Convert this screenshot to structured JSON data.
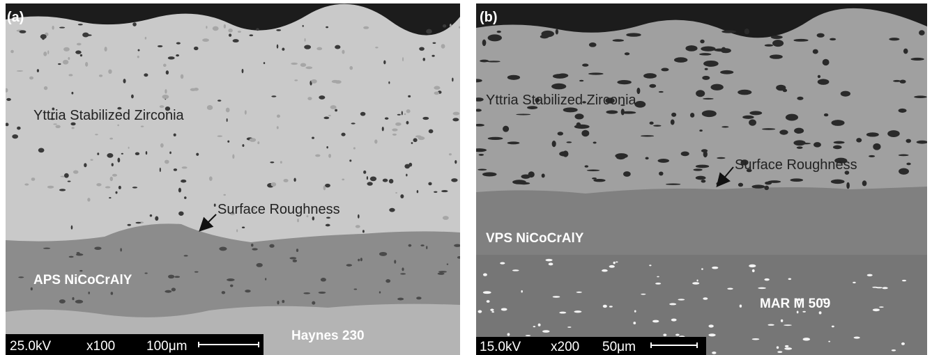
{
  "panels": [
    {
      "label": "(a)",
      "layers": [
        "Yttria Stabilized Zirconia",
        "APS NiCoCrAlY",
        "Haynes 230"
      ],
      "annotation": "Surface Roughness",
      "scale_bar": {
        "voltage": "25.0kV",
        "magnification": "x100",
        "length": "100μm"
      }
    },
    {
      "label": "(b)",
      "layers": [
        "Yttria Stabilized Zirconia",
        "VPS NiCoCrAlY",
        "MAR M 509"
      ],
      "annotation": "Surface Roughness",
      "scale_bar": {
        "voltage": "15.0kV",
        "magnification": "x200",
        "length": "50μm"
      }
    }
  ]
}
